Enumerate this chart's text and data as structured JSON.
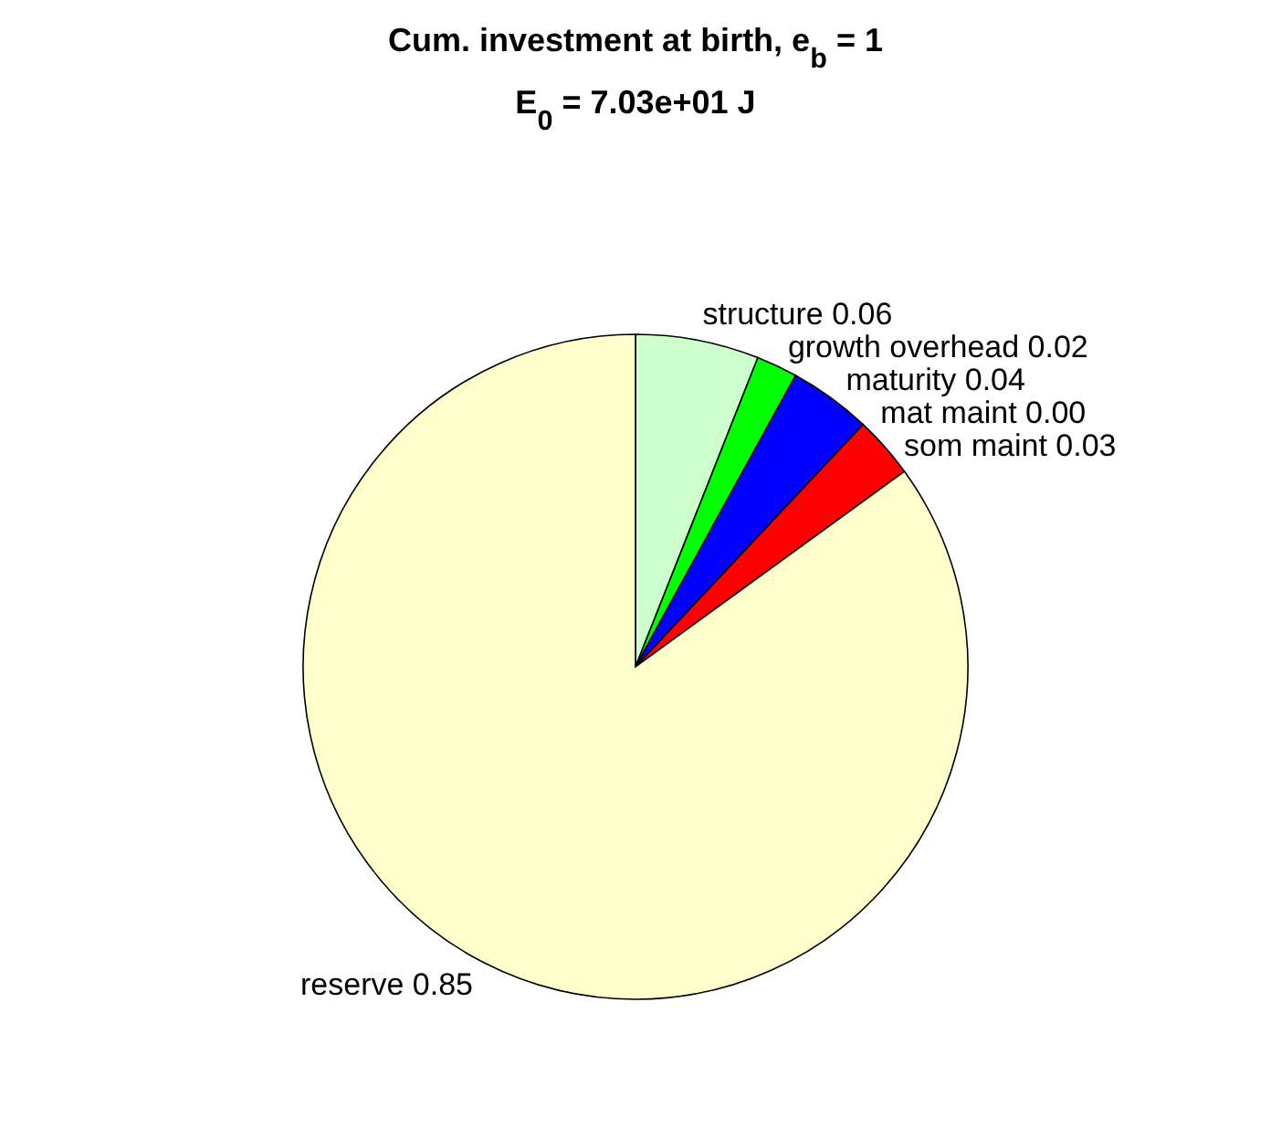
{
  "chart_data": {
    "type": "pie",
    "title": "Cum. investment at birth, e$_{b}$ = 1",
    "subtitle": "E$_{0}$ = 7.03e+01 J",
    "categories": [
      "structure",
      "growth overhead",
      "maturity",
      "mat maint",
      "som maint",
      "reserve"
    ],
    "values": [
      0.06,
      0.02,
      0.04,
      0.0,
      0.03,
      0.85
    ],
    "value_labels": [
      "0.06",
      "0.02",
      "0.04",
      "0.00",
      "0.03",
      "0.85"
    ],
    "colors": [
      "#ccffcc",
      "#00ff00",
      "#0000ff",
      "#ffffff",
      "#ff0000",
      "#ffffcc"
    ]
  }
}
